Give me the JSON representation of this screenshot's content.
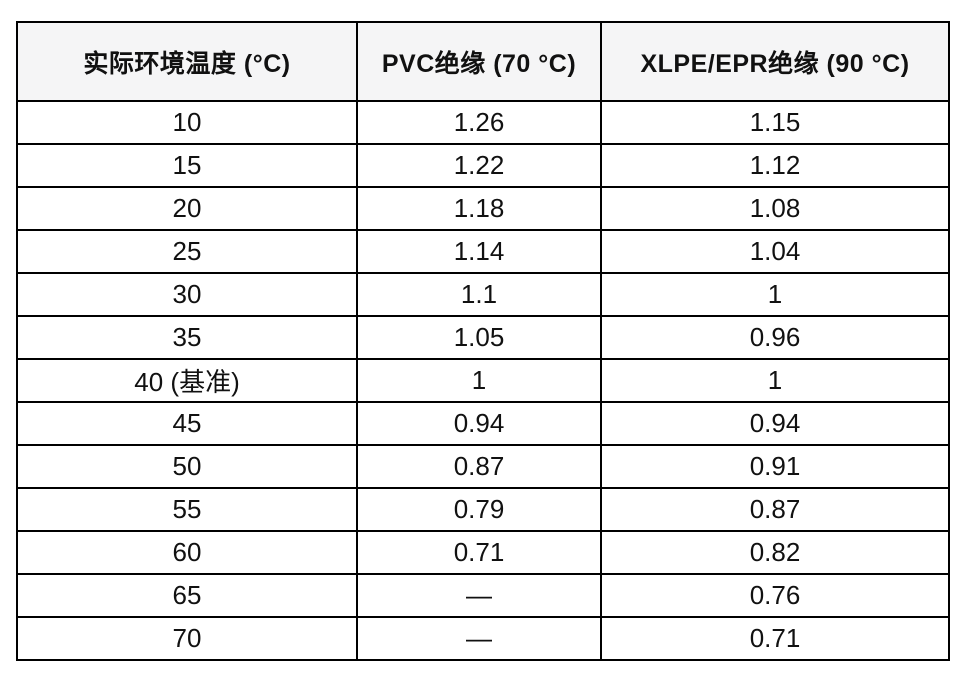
{
  "table": {
    "title": "ambient-temperature-correction-factors",
    "columns": [
      {
        "label": "实际环境温度 (°C)"
      },
      {
        "label": "PVC绝缘 (70 °C)"
      },
      {
        "label": "XLPE/EPR绝缘 (90 °C)"
      }
    ],
    "rows": [
      {
        "temperature": "10",
        "pvc": "1.26",
        "xlpe_epr": "1.15"
      },
      {
        "temperature": "15",
        "pvc": "1.22",
        "xlpe_epr": "1.12"
      },
      {
        "temperature": "20",
        "pvc": "1.18",
        "xlpe_epr": "1.08"
      },
      {
        "temperature": "25",
        "pvc": "1.14",
        "xlpe_epr": "1.04"
      },
      {
        "temperature": "30",
        "pvc": "1.1",
        "xlpe_epr": "1"
      },
      {
        "temperature": "35",
        "pvc": "1.05",
        "xlpe_epr": "0.96"
      },
      {
        "temperature": "40 (基准)",
        "pvc": "1",
        "xlpe_epr": "1"
      },
      {
        "temperature": "45",
        "pvc": "0.94",
        "xlpe_epr": "0.94"
      },
      {
        "temperature": "50",
        "pvc": "0.87",
        "xlpe_epr": "0.91"
      },
      {
        "temperature": "55",
        "pvc": "0.79",
        "xlpe_epr": "0.87"
      },
      {
        "temperature": "60",
        "pvc": "0.71",
        "xlpe_epr": "0.82"
      },
      {
        "temperature": "65",
        "pvc": "—",
        "xlpe_epr": "0.76"
      },
      {
        "temperature": "70",
        "pvc": "—",
        "xlpe_epr": "0.71"
      }
    ],
    "colors": {
      "header_background": "#f5f5f6",
      "border": "#000000",
      "text": "#111111",
      "page_background": "#ffffff"
    }
  }
}
